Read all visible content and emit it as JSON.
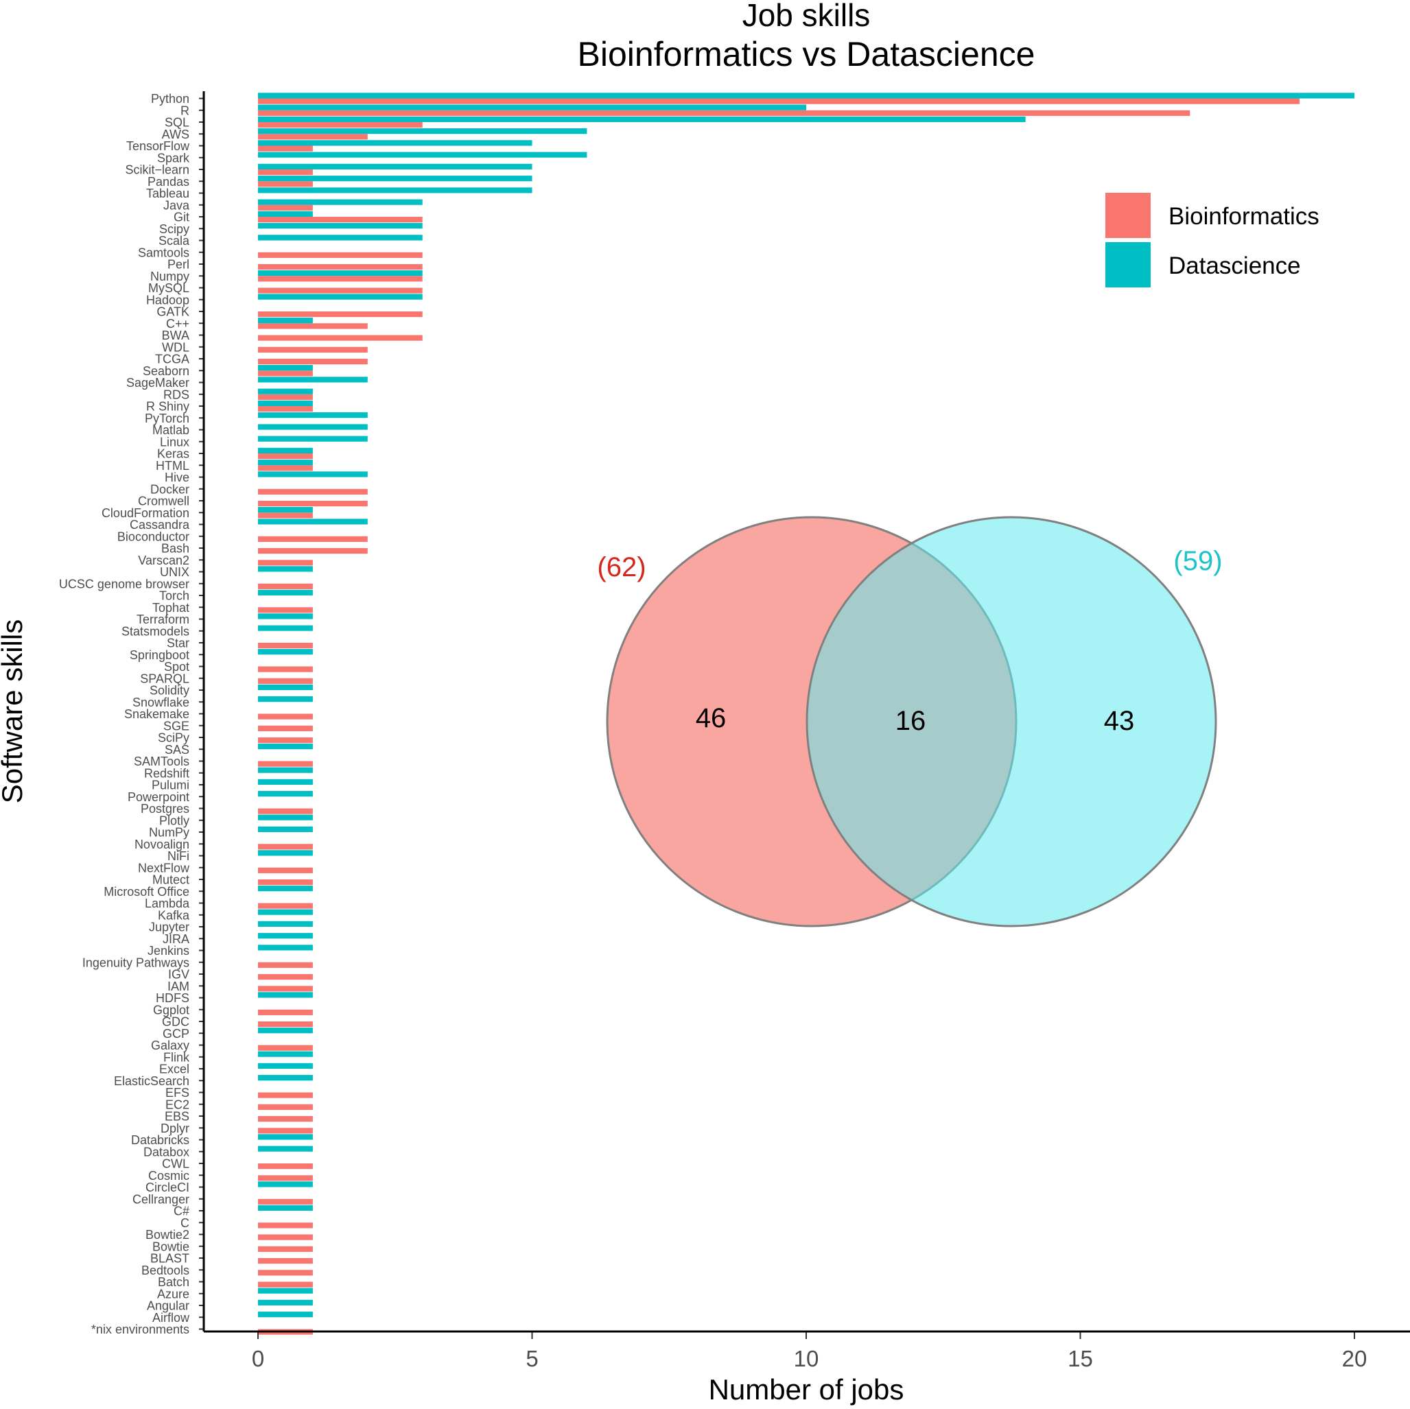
{
  "colors": {
    "Bioinformatics": "#F8766D",
    "Datascience": "#00BFC4",
    "venn_left_fill": "#F8766D",
    "venn_right_fill": "#5EEAEF",
    "venn_left_count": "#D7261E",
    "venn_right_count": "#1EC3C9",
    "axis": "#000000",
    "tick_label": "#4D4D4D"
  },
  "chart_data": {
    "type": "bar",
    "orientation": "horizontal",
    "title": "Job skills",
    "subtitle": "Bioinformatics vs Datascience",
    "xlabel": "Number of jobs",
    "ylabel": "Software skills",
    "xlim": [
      -1,
      21
    ],
    "xticks": [
      0,
      5,
      10,
      15,
      20
    ],
    "grid": false,
    "legend": {
      "position": "top-right",
      "entries": [
        "Bioinformatics",
        "Datascience"
      ]
    },
    "categories": [
      "Python",
      "R",
      "SQL",
      "AWS",
      "TensorFlow",
      "Spark",
      "Scikit−learn",
      "Pandas",
      "Tableau",
      "Java",
      "Git",
      "Scipy",
      "Scala",
      "Samtools",
      "Perl",
      "Numpy",
      "MySQL",
      "Hadoop",
      "GATK",
      "C++",
      "BWA",
      "WDL",
      "TCGA",
      "Seaborn",
      "SageMaker",
      "RDS",
      "R Shiny",
      "PyTorch",
      "Matlab",
      "Linux",
      "Keras",
      "HTML",
      "Hive",
      "Docker",
      "Cromwell",
      "CloudFormation",
      "Cassandra",
      "Bioconductor",
      "Bash",
      "Varscan2",
      "UNIX",
      "UCSC genome browser",
      "Torch",
      "Tophat",
      "Terraform",
      "Statsmodels",
      "Star",
      "Springboot",
      "Spot",
      "SPARQL",
      "Solidity",
      "Snowflake",
      "Snakemake",
      "SGE",
      "SciPy",
      "SAS",
      "SAMTools",
      "Redshift",
      "Pulumi",
      "Powerpoint",
      "Postgres",
      "Plotly",
      "NumPy",
      "Novoalign",
      "NiFi",
      "NextFlow",
      "Mutect",
      "Microsoft Office",
      "Lambda",
      "Kafka",
      "Jupyter",
      "JIRA",
      "Jenkins",
      "Ingenuity Pathways",
      "IGV",
      "IAM",
      "HDFS",
      "Ggplot",
      "GDC",
      "GCP",
      "Galaxy",
      "Flink",
      "Excel",
      "ElasticSearch",
      "EFS",
      "EC2",
      "EBS",
      "Dplyr",
      "Databricks",
      "Databox",
      "CWL",
      "Cosmic",
      "CircleCI",
      "Cellranger",
      "C#",
      "C",
      "Bowtie2",
      "Bowtie",
      "BLAST",
      "Bedtools",
      "Batch",
      "Azure",
      "Angular",
      "Airflow",
      "*nix environments"
    ],
    "series": [
      {
        "name": "Bioinformatics",
        "values": [
          19,
          17,
          3,
          2,
          1,
          0,
          1,
          1,
          0,
          1,
          3,
          0,
          0,
          3,
          3,
          3,
          3,
          0,
          3,
          2,
          3,
          2,
          2,
          1,
          0,
          1,
          1,
          0,
          0,
          0,
          1,
          1,
          0,
          2,
          2,
          1,
          0,
          2,
          2,
          1,
          0,
          1,
          0,
          1,
          0,
          0,
          1,
          0,
          1,
          1,
          0,
          0,
          1,
          1,
          1,
          0,
          1,
          0,
          0,
          0,
          1,
          0,
          0,
          1,
          0,
          1,
          1,
          0,
          1,
          0,
          0,
          0,
          0,
          1,
          1,
          1,
          0,
          1,
          1,
          0,
          1,
          0,
          0,
          0,
          1,
          1,
          1,
          1,
          0,
          0,
          1,
          1,
          0,
          1,
          0,
          1,
          1,
          1,
          1,
          1,
          1,
          0,
          0,
          0,
          1
        ]
      },
      {
        "name": "Datascience",
        "values": [
          20,
          10,
          14,
          6,
          5,
          6,
          5,
          5,
          5,
          3,
          1,
          3,
          3,
          0,
          0,
          3,
          0,
          3,
          0,
          1,
          0,
          0,
          0,
          1,
          2,
          1,
          1,
          2,
          2,
          2,
          1,
          1,
          2,
          0,
          0,
          1,
          2,
          0,
          0,
          0,
          1,
          0,
          1,
          0,
          1,
          1,
          0,
          1,
          0,
          0,
          1,
          1,
          0,
          0,
          0,
          1,
          0,
          1,
          1,
          1,
          0,
          1,
          1,
          0,
          1,
          0,
          0,
          1,
          0,
          1,
          1,
          1,
          1,
          0,
          0,
          0,
          1,
          0,
          0,
          1,
          0,
          1,
          1,
          1,
          0,
          0,
          0,
          0,
          1,
          1,
          0,
          0,
          1,
          0,
          1,
          0,
          0,
          0,
          0,
          0,
          0,
          1,
          1,
          1,
          0
        ]
      }
    ],
    "inset": {
      "type": "venn",
      "sets": [
        {
          "name": "Bioinformatics",
          "total": 62,
          "total_label": "(62)",
          "only": 46
        },
        {
          "name": "Datascience",
          "total": 59,
          "total_label": "(59)",
          "only": 43
        }
      ],
      "intersection": 16
    }
  }
}
